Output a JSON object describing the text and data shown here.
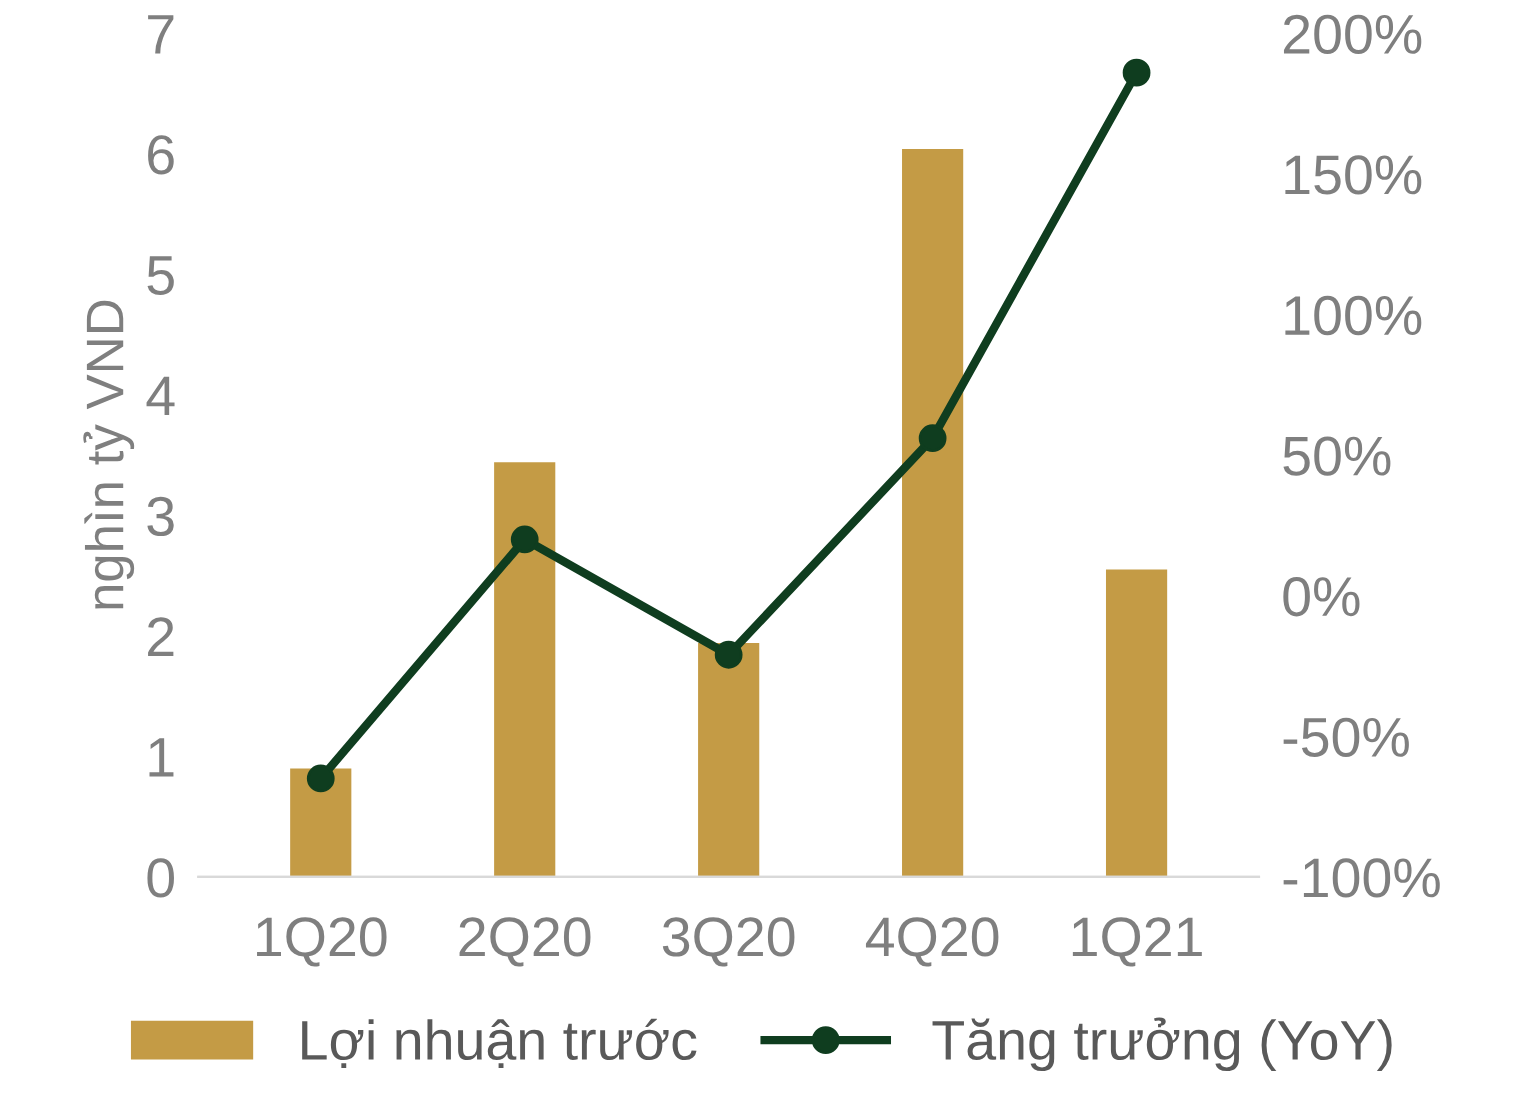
{
  "chart_data": {
    "type": "bar",
    "ylabel": "nghìn tỷ VND",
    "categories": [
      "1Q20",
      "2Q20",
      "3Q20",
      "4Q20",
      "1Q21"
    ],
    "series": [
      {
        "name": "Lợi nhuận trước",
        "color": "#c49b45",
        "values": [
          0.9,
          3.44,
          1.94,
          6.04,
          2.55
        ]
      },
      {
        "name": "Tăng trưởng (YoY)",
        "type": "line",
        "axis": "y2",
        "color": "#0f3d1f",
        "marker": "circle",
        "values": [
          -65,
          20,
          -21,
          56,
          186
        ]
      }
    ],
    "ylim": [
      0,
      7
    ],
    "yticks": [
      0,
      1,
      2,
      3,
      4,
      5,
      6,
      7
    ],
    "y2lim": [
      -100,
      200
    ],
    "y2ticks": [
      {
        "value": -100,
        "label": "-100%"
      },
      {
        "value": -50,
        "label": "-50%"
      },
      {
        "value": 0,
        "label": "0%"
      },
      {
        "value": 50,
        "label": "50%"
      },
      {
        "value": 100,
        "label": "100%"
      },
      {
        "value": 150,
        "label": "150%"
      },
      {
        "value": 200,
        "label": "200%"
      }
    ],
    "grid": false,
    "legend": "bottom"
  }
}
